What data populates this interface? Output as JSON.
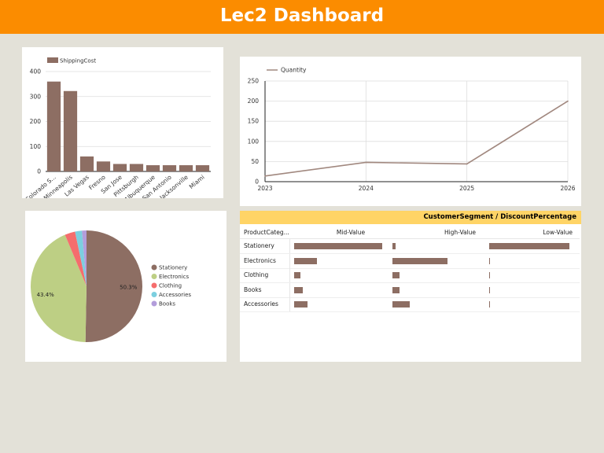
{
  "header": {
    "title": "Lec2 Dashboard",
    "color": "#fb8c00"
  },
  "charts": {
    "bar": {
      "chart_data": {
        "type": "bar",
        "title": "",
        "legend": "top-left",
        "series": [
          {
            "name": "ShippingCost",
            "color": "#8d6e63",
            "values": [
              360,
              322,
              60,
              40,
              30,
              30,
              25,
              25,
              25,
              25
            ]
          }
        ],
        "categories": [
          "Colorado S...",
          "Minneapolis",
          "Las Vegas",
          "Fresno",
          "San Jose",
          "Pittsburgh",
          "Albuquerque",
          "San Antonio",
          "Jacksonville",
          "Miami"
        ],
        "ylim": [
          0,
          400
        ],
        "yticks": [
          0,
          100,
          200,
          300,
          400
        ],
        "grid": true
      }
    },
    "line": {
      "chart_data": {
        "type": "line",
        "legend": "top-left",
        "x": [
          "2023",
          "2024",
          "2025",
          "2026"
        ],
        "series": [
          {
            "name": "Quantity",
            "color": "#a1887f",
            "values": [
              14,
              48,
              44,
              200
            ]
          }
        ],
        "ylim": [
          0,
          250
        ],
        "yticks": [
          0,
          50,
          100,
          150,
          200,
          250
        ],
        "grid": true
      }
    },
    "pie": {
      "chart_data": {
        "type": "pie",
        "legend": "right",
        "slices": [
          {
            "label": "Stationery",
            "value": 50.3,
            "color": "#8d6e63",
            "shown": "50.3%"
          },
          {
            "label": "Electronics",
            "value": 43.4,
            "color": "#bdcf84",
            "shown": "43.4%"
          },
          {
            "label": "Clothing",
            "value": 3.0,
            "color": "#f56d6d",
            "shown": ""
          },
          {
            "label": "Accessories",
            "value": 2.0,
            "color": "#7ccfdf",
            "shown": ""
          },
          {
            "label": "Books",
            "value": 1.3,
            "color": "#b39ddb",
            "shown": ""
          }
        ]
      }
    },
    "pivot": {
      "chart_data": {
        "type": "table",
        "title": "CustomerSegment / DiscountPercentage",
        "row_header": "ProductCateg...",
        "columns": [
          "Mid-Value",
          "High-Value",
          "Low-Value"
        ],
        "rows": [
          {
            "label": "Stationery",
            "values": [
              1.0,
              0.04,
              1.0
            ]
          },
          {
            "label": "Electronics",
            "values": [
              0.26,
              0.64,
              0.01
            ]
          },
          {
            "label": "Clothing",
            "values": [
              0.07,
              0.08,
              0.01
            ]
          },
          {
            "label": "Books",
            "values": [
              0.1,
              0.08,
              0.01
            ]
          },
          {
            "label": "Accessories",
            "values": [
              0.15,
              0.2,
              0.01
            ]
          }
        ],
        "bar_color": "#8d6e63",
        "header_color": "#ffd466"
      }
    }
  }
}
